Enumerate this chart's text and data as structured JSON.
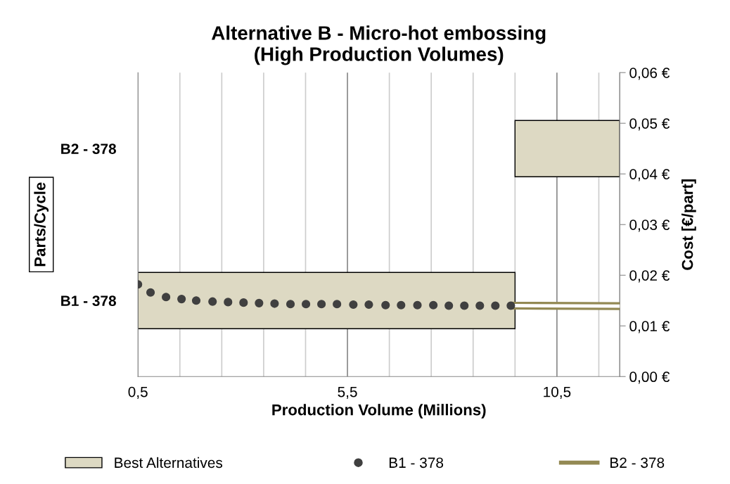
{
  "chart_data": [
    {
      "type": "bar",
      "orientation": "horizontal",
      "title": "Alternative B - Micro-hot embossing\n(High Production Volumes)",
      "xlabel": "Production Volume (Millions)",
      "ylabel": "Parts/Cycle",
      "categories": [
        "B2 - 378",
        "B1 - 378"
      ],
      "series": [
        {
          "name": "Best Alternatives",
          "color": "#ddd9c3",
          "base": [
            9.5,
            0.5
          ],
          "values": [
            2.5,
            9.0
          ]
        }
      ],
      "xlim": [
        0.5,
        12.0
      ],
      "xticks": [
        {
          "value": 0.5,
          "label": "0,5"
        },
        {
          "value": 1.5,
          "label": null
        },
        {
          "value": 2.5,
          "label": null
        },
        {
          "value": 3.5,
          "label": null
        },
        {
          "value": 4.5,
          "label": null
        },
        {
          "value": 5.5,
          "label": "5,5"
        },
        {
          "value": 6.5,
          "label": null
        },
        {
          "value": 7.5,
          "label": null
        },
        {
          "value": 8.5,
          "label": null
        },
        {
          "value": 9.5,
          "label": null
        },
        {
          "value": 10.5,
          "label": "10,5"
        },
        {
          "value": 11.5,
          "label": null
        }
      ],
      "grid": "x",
      "legend": "bottom"
    },
    {
      "type": "scatter",
      "ylabel": "Cost [€/part]",
      "tick_labels": "y",
      "series": [
        {
          "name": "B1 - 378",
          "color": "#404040",
          "marker": "circle",
          "x": [
            0.5,
            0.8,
            1.17,
            1.54,
            1.89,
            2.28,
            2.65,
            3.02,
            3.39,
            3.76,
            4.14,
            4.51,
            4.88,
            5.25,
            5.64,
            6.01,
            6.41,
            6.78,
            7.17,
            7.55,
            7.92,
            8.29,
            8.66,
            9.03,
            9.4
          ],
          "values": [
            0.0182,
            0.0166,
            0.0157,
            0.0153,
            0.015,
            0.0148,
            0.0147,
            0.0146,
            0.0145,
            0.0144,
            0.0143,
            0.0143,
            0.0143,
            0.0143,
            0.0142,
            0.0142,
            0.0141,
            0.0141,
            0.0141,
            0.0141,
            0.014,
            0.014,
            0.014,
            0.014,
            0.014
          ]
        },
        {
          "name": "B2 - 378",
          "type": "line",
          "color": "#938953",
          "x": [
            9.5,
            12.0
          ],
          "values": [
            0.014,
            0.0139
          ]
        }
      ],
      "xlim": [
        0.5,
        12.0
      ],
      "ylim": [
        0,
        0.06
      ],
      "yticks": [
        {
          "value": 0,
          "label": "0,00 €"
        },
        {
          "value": 0.01,
          "label": "0,01 €"
        },
        {
          "value": 0.02,
          "label": "0,02 €"
        },
        {
          "value": 0.03,
          "label": "0,03 €"
        },
        {
          "value": 0.04,
          "label": "0,04 €"
        },
        {
          "value": 0.05,
          "label": "0,05 €"
        },
        {
          "value": 0.06,
          "label": "0,06 €"
        }
      ],
      "legend": "bottom"
    }
  ]
}
